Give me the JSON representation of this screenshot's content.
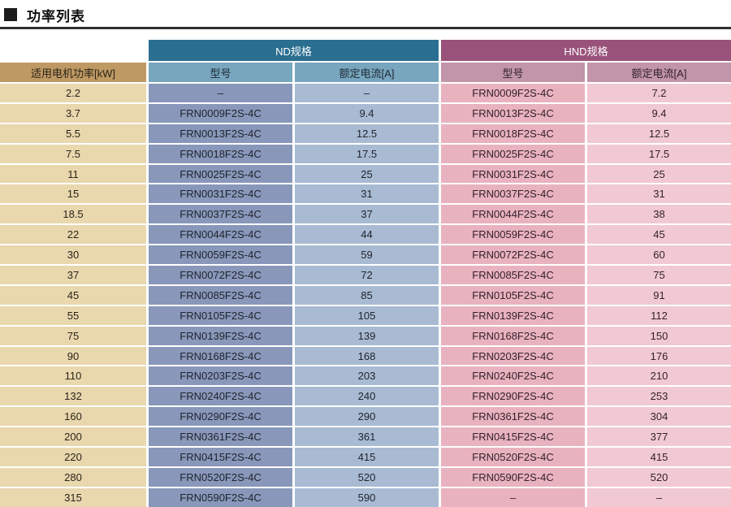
{
  "page": {
    "title": "功率列表"
  },
  "colors": {
    "rule": "#2e2e2e",
    "tan-header": "#bf9963",
    "tan-cell": "#e9d7ae",
    "nd-header": "#2a6e90",
    "nd-sub": "#78a6bf",
    "nd-model": "#8998ba",
    "nd-current": "#a9bbd3",
    "hnd-header": "#99537a",
    "hnd-sub": "#c295aa",
    "hnd-model": "#e9b2bf",
    "hnd-current": "#f1c9d2"
  },
  "table": {
    "power_column_header": "适用电机功率[kW]",
    "groups": [
      {
        "label": "ND规格",
        "sub_headers": {
          "model": "型号",
          "current": "额定电流[A]"
        }
      },
      {
        "label": "HND规格",
        "sub_headers": {
          "model": "型号",
          "current": "额定电流[A]"
        }
      }
    ],
    "columns": [
      "适用电机功率[kW]",
      "ND 型号",
      "ND 额定电流[A]",
      "HND 型号",
      "HND 额定电流[A]"
    ],
    "rows": [
      [
        "2.2",
        "–",
        "–",
        "FRN0009F2S-4C",
        "7.2"
      ],
      [
        "3.7",
        "FRN0009F2S-4C",
        "9.4",
        "FRN0013F2S-4C",
        "9.4"
      ],
      [
        "5.5",
        "FRN0013F2S-4C",
        "12.5",
        "FRN0018F2S-4C",
        "12.5"
      ],
      [
        "7.5",
        "FRN0018F2S-4C",
        "17.5",
        "FRN0025F2S-4C",
        "17.5"
      ],
      [
        "11",
        "FRN0025F2S-4C",
        "25",
        "FRN0031F2S-4C",
        "25"
      ],
      [
        "15",
        "FRN0031F2S-4C",
        "31",
        "FRN0037F2S-4C",
        "31"
      ],
      [
        "18.5",
        "FRN0037F2S-4C",
        "37",
        "FRN0044F2S-4C",
        "38"
      ],
      [
        "22",
        "FRN0044F2S-4C",
        "44",
        "FRN0059F2S-4C",
        "45"
      ],
      [
        "30",
        "FRN0059F2S-4C",
        "59",
        "FRN0072F2S-4C",
        "60"
      ],
      [
        "37",
        "FRN0072F2S-4C",
        "72",
        "FRN0085F2S-4C",
        "75"
      ],
      [
        "45",
        "FRN0085F2S-4C",
        "85",
        "FRN0105F2S-4C",
        "91"
      ],
      [
        "55",
        "FRN0105F2S-4C",
        "105",
        "FRN0139F2S-4C",
        "112"
      ],
      [
        "75",
        "FRN0139F2S-4C",
        "139",
        "FRN0168F2S-4C",
        "150"
      ],
      [
        "90",
        "FRN0168F2S-4C",
        "168",
        "FRN0203F2S-4C",
        "176"
      ],
      [
        "110",
        "FRN0203F2S-4C",
        "203",
        "FRN0240F2S-4C",
        "210"
      ],
      [
        "132",
        "FRN0240F2S-4C",
        "240",
        "FRN0290F2S-4C",
        "253"
      ],
      [
        "160",
        "FRN0290F2S-4C",
        "290",
        "FRN0361F2S-4C",
        "304"
      ],
      [
        "200",
        "FRN0361F2S-4C",
        "361",
        "FRN0415F2S-4C",
        "377"
      ],
      [
        "220",
        "FRN0415F2S-4C",
        "415",
        "FRN0520F2S-4C",
        "415"
      ],
      [
        "280",
        "FRN0520F2S-4C",
        "520",
        "FRN0590F2S-4C",
        "520"
      ],
      [
        "315",
        "FRN0590F2S-4C",
        "590",
        "–",
        "–"
      ]
    ]
  }
}
